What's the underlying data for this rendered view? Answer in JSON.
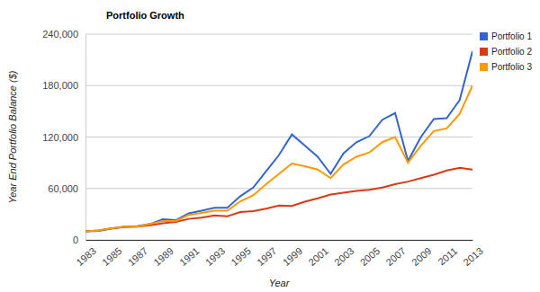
{
  "chart_data": {
    "type": "line",
    "title": "Portfolio Growth",
    "x_label": "Year",
    "y_label": "Year End Portfolio Balance ($)",
    "x": [
      1983,
      1984,
      1985,
      1986,
      1987,
      1988,
      1989,
      1990,
      1991,
      1992,
      1993,
      1994,
      1995,
      1996,
      1997,
      1998,
      1999,
      2000,
      2001,
      2002,
      2003,
      2004,
      2005,
      2006,
      2007,
      2008,
      2009,
      2010,
      2011,
      2012,
      2013
    ],
    "series": [
      {
        "name": "Portfolio 1",
        "color": "#3366cc",
        "values": [
          10000,
          10500,
          13000,
          15500,
          16000,
          18500,
          24000,
          23000,
          31000,
          34000,
          37500,
          37500,
          51000,
          61000,
          80000,
          99000,
          123000,
          110000,
          97000,
          77000,
          101000,
          114000,
          121000,
          140000,
          148000,
          92000,
          120000,
          141000,
          142000,
          163000,
          220000
        ]
      },
      {
        "name": "Portfolio 2",
        "color": "#dc3912",
        "values": [
          10000,
          11000,
          13500,
          15000,
          15500,
          17000,
          19500,
          21000,
          24500,
          26000,
          28500,
          27500,
          32500,
          33500,
          36500,
          40000,
          39500,
          44500,
          48500,
          53000,
          55000,
          57000,
          58500,
          61000,
          65000,
          68000,
          72000,
          76000,
          81000,
          84000,
          82000
        ]
      },
      {
        "name": "Portfolio 3",
        "color": "#ff9900",
        "values": [
          10000,
          11000,
          13500,
          15500,
          15500,
          18500,
          22000,
          22000,
          29000,
          31500,
          34000,
          34000,
          45000,
          52000,
          65000,
          77000,
          89000,
          86000,
          82000,
          72000,
          88000,
          97000,
          102000,
          114000,
          120000,
          90000,
          110000,
          127000,
          130000,
          147000,
          180000
        ]
      }
    ],
    "xlim": [
      1983,
      2013
    ],
    "xticks": [
      1983,
      1985,
      1987,
      1989,
      1991,
      1993,
      1995,
      1997,
      1999,
      2001,
      2003,
      2005,
      2007,
      2009,
      2011,
      2013
    ],
    "ylim": [
      0,
      240000
    ],
    "yticks": [
      0,
      {
        "value": 60000,
        "label": "60,000"
      },
      {
        "value": 120000,
        "label": "120,000"
      },
      {
        "value": 180000,
        "label": "180,000"
      },
      {
        "value": 240000,
        "label": "240,000"
      }
    ],
    "grid": true,
    "legend": "top-right"
  }
}
